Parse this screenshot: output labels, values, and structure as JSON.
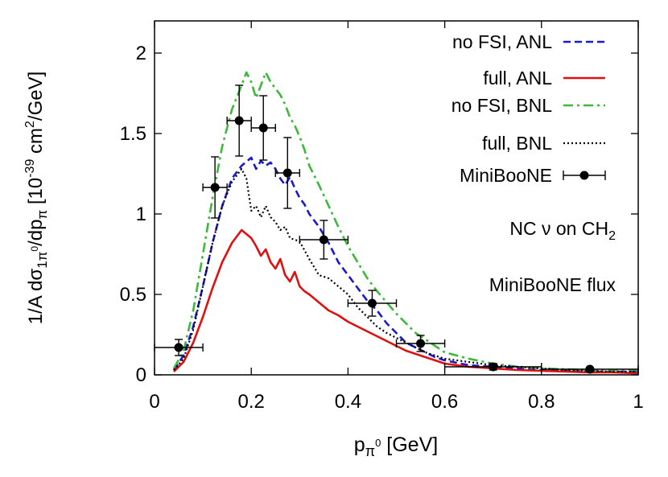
{
  "chart_data": {
    "type": "line",
    "xlabel": "p",
    "xlabel_sub": "π",
    "xlabel_sub_sup": "0",
    "xlabel_unit": " [GeV]",
    "ylabel_parts": {
      "prefix": "1/A dσ",
      "sub1": "1π",
      "sub1_sup": "0",
      "mid": "/dp",
      "sub2": "π",
      "bracket_open": " [10",
      "exp": "-39",
      "unit": " cm",
      "unit_exp": "2",
      "unit_tail": "/GeV]"
    },
    "xlim": [
      0,
      1
    ],
    "ylim": [
      0,
      2.2
    ],
    "xticks": [
      "0",
      "0.2",
      "0.4",
      "0.6",
      "0.8",
      "1"
    ],
    "yticks": [
      "0",
      "0.5",
      "1",
      "1.5",
      "2"
    ],
    "annotations": [
      "NC ν on CH",
      "MiniBooNE flux"
    ],
    "annotation_sub": "2",
    "legend_position": "top-right",
    "grid": false,
    "series": [
      {
        "name": "no FSI, ANL",
        "color": "#1a1acc",
        "style": "dashed",
        "x": [
          0.04,
          0.06,
          0.08,
          0.1,
          0.12,
          0.14,
          0.16,
          0.18,
          0.2,
          0.21,
          0.22,
          0.23,
          0.24,
          0.25,
          0.26,
          0.27,
          0.28,
          0.29,
          0.3,
          0.31,
          0.32,
          0.33,
          0.34,
          0.36,
          0.38,
          0.4,
          0.42,
          0.44,
          0.46,
          0.48,
          0.5,
          0.52,
          0.54,
          0.56,
          0.58,
          0.6,
          0.65,
          0.7,
          0.75,
          0.8,
          0.85,
          0.9,
          0.95,
          1.0
        ],
        "y": [
          0.03,
          0.12,
          0.3,
          0.55,
          0.82,
          1.05,
          1.22,
          1.3,
          1.35,
          1.28,
          1.33,
          1.3,
          1.32,
          1.28,
          1.22,
          1.18,
          1.23,
          1.16,
          1.1,
          1.06,
          1.0,
          0.96,
          0.92,
          0.82,
          0.7,
          0.62,
          0.54,
          0.46,
          0.4,
          0.32,
          0.26,
          0.2,
          0.17,
          0.14,
          0.11,
          0.09,
          0.06,
          0.05,
          0.04,
          0.03,
          0.025,
          0.02,
          0.02,
          0.02
        ]
      },
      {
        "name": "full, ANL",
        "color": "#e01010",
        "style": "solid",
        "x": [
          0.04,
          0.06,
          0.08,
          0.1,
          0.12,
          0.14,
          0.16,
          0.18,
          0.2,
          0.21,
          0.22,
          0.23,
          0.24,
          0.25,
          0.26,
          0.27,
          0.28,
          0.29,
          0.3,
          0.31,
          0.32,
          0.34,
          0.36,
          0.38,
          0.4,
          0.42,
          0.44,
          0.46,
          0.48,
          0.5,
          0.52,
          0.54,
          0.56,
          0.58,
          0.6,
          0.65,
          0.7,
          0.75,
          0.8,
          0.85,
          0.9,
          0.95,
          1.0
        ],
        "y": [
          0.02,
          0.08,
          0.2,
          0.36,
          0.54,
          0.7,
          0.82,
          0.9,
          0.85,
          0.8,
          0.74,
          0.78,
          0.7,
          0.66,
          0.72,
          0.62,
          0.58,
          0.64,
          0.55,
          0.52,
          0.5,
          0.45,
          0.4,
          0.37,
          0.33,
          0.3,
          0.27,
          0.24,
          0.21,
          0.18,
          0.15,
          0.13,
          0.11,
          0.09,
          0.07,
          0.05,
          0.04,
          0.03,
          0.025,
          0.02,
          0.015,
          0.015,
          0.01
        ]
      },
      {
        "name": "no FSI, BNL",
        "color": "#3cb83c",
        "style": "dashdot",
        "x": [
          0.04,
          0.06,
          0.08,
          0.1,
          0.12,
          0.14,
          0.16,
          0.18,
          0.19,
          0.2,
          0.21,
          0.22,
          0.23,
          0.24,
          0.25,
          0.26,
          0.27,
          0.28,
          0.29,
          0.3,
          0.31,
          0.32,
          0.34,
          0.36,
          0.38,
          0.4,
          0.42,
          0.44,
          0.46,
          0.48,
          0.5,
          0.52,
          0.54,
          0.56,
          0.58,
          0.6,
          0.65,
          0.7,
          0.75,
          0.8,
          0.85,
          0.9,
          0.95,
          1.0
        ],
        "y": [
          0.04,
          0.15,
          0.4,
          0.75,
          1.1,
          1.42,
          1.65,
          1.8,
          1.88,
          1.82,
          1.72,
          1.8,
          1.88,
          1.82,
          1.78,
          1.74,
          1.68,
          1.6,
          1.55,
          1.48,
          1.4,
          1.3,
          1.18,
          1.05,
          0.92,
          0.8,
          0.7,
          0.6,
          0.52,
          0.45,
          0.38,
          0.32,
          0.26,
          0.22,
          0.18,
          0.14,
          0.1,
          0.07,
          0.05,
          0.04,
          0.035,
          0.03,
          0.03,
          0.03
        ]
      },
      {
        "name": "full, BNL",
        "color": "#000000",
        "style": "dotted",
        "x": [
          0.04,
          0.06,
          0.08,
          0.1,
          0.12,
          0.14,
          0.16,
          0.18,
          0.19,
          0.2,
          0.21,
          0.22,
          0.23,
          0.24,
          0.25,
          0.26,
          0.27,
          0.28,
          0.29,
          0.3,
          0.32,
          0.34,
          0.36,
          0.38,
          0.4,
          0.42,
          0.44,
          0.46,
          0.48,
          0.5,
          0.52,
          0.54,
          0.56,
          0.58,
          0.6,
          0.65,
          0.7,
          0.75,
          0.8,
          0.85,
          0.9,
          0.95,
          1.0
        ],
        "y": [
          0.03,
          0.1,
          0.28,
          0.55,
          0.82,
          1.05,
          1.2,
          1.28,
          1.22,
          1.02,
          1.05,
          0.98,
          1.05,
          0.98,
          0.95,
          0.9,
          0.92,
          0.85,
          0.84,
          0.83,
          0.72,
          0.62,
          0.6,
          0.55,
          0.5,
          0.42,
          0.36,
          0.3,
          0.26,
          0.23,
          0.2,
          0.17,
          0.14,
          0.12,
          0.1,
          0.08,
          0.06,
          0.05,
          0.04,
          0.03,
          0.025,
          0.02,
          0.02
        ]
      }
    ],
    "data_points": {
      "name": "MiniBooNE",
      "points": [
        {
          "x": 0.05,
          "y": 0.17,
          "xerr": 0.05,
          "yerr": 0.05
        },
        {
          "x": 0.125,
          "y": 1.165,
          "xerr": 0.025,
          "yerr": 0.19
        },
        {
          "x": 0.175,
          "y": 1.58,
          "xerr": 0.025,
          "yerr": 0.22
        },
        {
          "x": 0.225,
          "y": 1.535,
          "xerr": 0.025,
          "yerr": 0.2
        },
        {
          "x": 0.275,
          "y": 1.255,
          "xerr": 0.025,
          "yerr": 0.22
        },
        {
          "x": 0.35,
          "y": 0.84,
          "xerr": 0.05,
          "yerr": 0.12
        },
        {
          "x": 0.45,
          "y": 0.445,
          "xerr": 0.05,
          "yerr": 0.08
        },
        {
          "x": 0.55,
          "y": 0.195,
          "xerr": 0.05,
          "yerr": 0.05
        },
        {
          "x": 0.7,
          "y": 0.05,
          "xerr": 0.1,
          "yerr": 0.02
        },
        {
          "x": 0.9,
          "y": 0.035,
          "xerr": 0.1,
          "yerr": 0.01
        }
      ]
    }
  }
}
